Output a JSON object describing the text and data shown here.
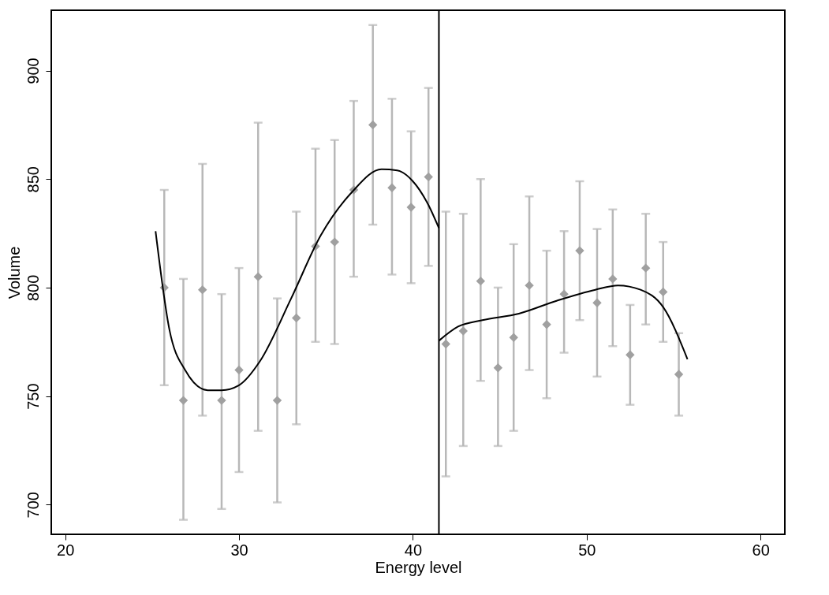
{
  "chart_data": {
    "type": "scatter",
    "xlabel": "Energy level",
    "ylabel": "Volume",
    "xlim": [
      19.2,
      61.4
    ],
    "ylim": [
      686.3,
      927.8
    ],
    "xticks": [
      20,
      30,
      40,
      50,
      60
    ],
    "yticks": [
      700,
      750,
      800,
      850,
      900
    ],
    "grid": false,
    "series": [
      {
        "color": "#a0a0a0",
        "marker": "diamond",
        "x": [
          25.7,
          26.8,
          27.9,
          29.0,
          30.0,
          31.1,
          32.2,
          33.3,
          34.4,
          35.5,
          36.6,
          37.7,
          38.8,
          39.9,
          40.9,
          41.9,
          42.9,
          43.9,
          44.9,
          45.8,
          46.7,
          47.7,
          48.7,
          49.6,
          50.6,
          51.5,
          52.5,
          53.4,
          54.4,
          55.3
        ],
        "values": [
          800,
          748,
          799,
          748,
          762,
          805,
          748,
          786,
          819,
          821,
          845,
          875,
          846,
          837,
          851,
          774,
          780,
          803,
          763,
          777,
          801,
          783,
          797,
          817,
          793,
          804,
          769,
          809,
          798,
          760
        ],
        "errors": [
          [
            755,
            845
          ],
          [
            693,
            804
          ],
          [
            741,
            857
          ],
          [
            698,
            797
          ],
          [
            715,
            809
          ],
          [
            734,
            876
          ],
          [
            701,
            795
          ],
          [
            737,
            835
          ],
          [
            775,
            864
          ],
          [
            774,
            868
          ],
          [
            805,
            886
          ],
          [
            829,
            921
          ],
          [
            806,
            887
          ],
          [
            802,
            872
          ],
          [
            810,
            892
          ],
          [
            713,
            835
          ],
          [
            727,
            834
          ],
          [
            757,
            850
          ],
          [
            727,
            800
          ],
          [
            734,
            820
          ],
          [
            762,
            842
          ],
          [
            749,
            817
          ],
          [
            770,
            826
          ],
          [
            785,
            849
          ],
          [
            759,
            827
          ],
          [
            773,
            836
          ],
          [
            746,
            792
          ],
          [
            783,
            834
          ],
          [
            775,
            821
          ],
          [
            741,
            779
          ]
        ]
      },
      {
        "type": "line",
        "color": "#000000",
        "marker": "none",
        "line_style": "solid",
        "x": [
          25.2,
          26.0,
          26.9,
          28.2,
          29.0,
          30.0,
          31.2,
          33.0,
          34.7,
          36.5,
          38.2,
          39.1,
          40.0,
          40.9,
          41.5
        ],
        "values": [
          826,
          780.5,
          762,
          752.7,
          752.7,
          755,
          766,
          795,
          824,
          844,
          854.5,
          854,
          849,
          838,
          827.4
        ]
      },
      {
        "type": "line",
        "color": "#000000",
        "marker": "none",
        "line_style": "solid",
        "x": [
          41.5,
          42.6,
          44.0,
          46.1,
          48.3,
          50.5,
          51.8,
          53.1,
          54.4,
          55.8
        ],
        "values": [
          775.5,
          782,
          785,
          788,
          794,
          799,
          801,
          799,
          791,
          767
        ]
      }
    ],
    "ref_lines": [
      {
        "axis": "x",
        "value": 41.5,
        "color": "#000000",
        "line_style": "solid"
      }
    ]
  }
}
